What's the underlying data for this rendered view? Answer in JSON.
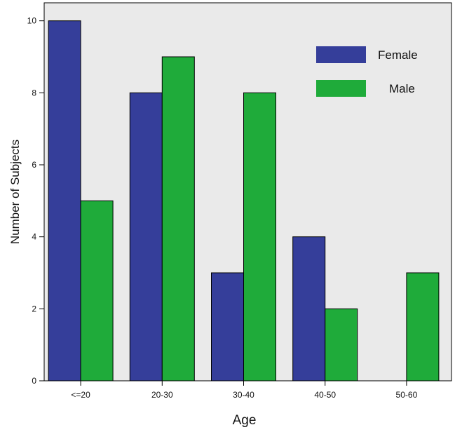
{
  "chart_data": {
    "type": "bar",
    "title": "",
    "xlabel": "Age",
    "ylabel": "Number of Subjects",
    "categories": [
      "<=20",
      "20-30",
      "30-40",
      "40-50",
      "50-60"
    ],
    "ylim": [
      0,
      10.5
    ],
    "yticks": [
      0,
      2,
      4,
      6,
      8,
      10
    ],
    "grid": false,
    "legend_position": "top-right",
    "series": [
      {
        "name": "Female",
        "color": "#353e9a",
        "values": [
          10,
          8,
          3,
          4,
          0
        ]
      },
      {
        "name": "Male",
        "color": "#1fab3a",
        "values": [
          5,
          9,
          8,
          2,
          3
        ]
      }
    ],
    "plot_background": "#eaeaea"
  }
}
